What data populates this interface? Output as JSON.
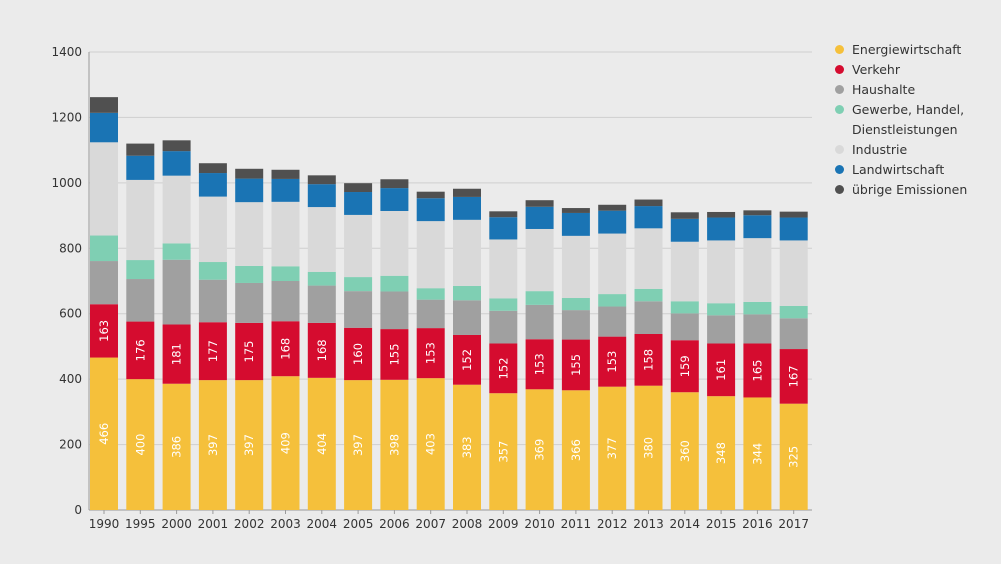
{
  "chart_data": {
    "type": "bar",
    "stacked": true,
    "categories": [
      "1990",
      "1995",
      "2000",
      "2001",
      "2002",
      "2003",
      "2004",
      "2005",
      "2006",
      "2007",
      "2008",
      "2009",
      "2010",
      "2011",
      "2012",
      "2013",
      "2014",
      "2015",
      "2016",
      "2017"
    ],
    "ylim": [
      0,
      1400
    ],
    "yticks": [
      0,
      200,
      400,
      600,
      800,
      1000,
      1200,
      1400
    ],
    "grid": true,
    "legend_position": "right",
    "series": [
      {
        "name": "Energiewirtschaft",
        "color": "#f5c03b",
        "labeled": true,
        "values": [
          466,
          400,
          386,
          397,
          397,
          409,
          404,
          397,
          398,
          403,
          383,
          357,
          369,
          366,
          377,
          380,
          360,
          348,
          344,
          325
        ]
      },
      {
        "name": "Verkehr",
        "color": "#d50c2f",
        "labeled": true,
        "values": [
          163,
          176,
          181,
          177,
          175,
          168,
          168,
          160,
          155,
          153,
          152,
          152,
          153,
          155,
          153,
          158,
          159,
          161,
          165,
          167
        ]
      },
      {
        "name": "Haushalte",
        "color": "#a0a0a0",
        "labeled": false,
        "values": [
          132,
          130,
          198,
          130,
          122,
          123,
          114,
          112,
          115,
          87,
          106,
          100,
          105,
          90,
          92,
          100,
          82,
          86,
          89,
          94
        ]
      },
      {
        "name": "Gewerbe, Handel, Dienstleistungen",
        "color": "#7fcfb3",
        "labeled": false,
        "values": [
          78,
          58,
          50,
          54,
          52,
          45,
          42,
          43,
          48,
          35,
          44,
          38,
          42,
          37,
          38,
          38,
          37,
          37,
          38,
          38
        ]
      },
      {
        "name": "Industrie",
        "color": "#d9d9d9",
        "labeled": false,
        "values": [
          285,
          245,
          207,
          200,
          195,
          197,
          198,
          190,
          198,
          205,
          202,
          180,
          190,
          190,
          185,
          185,
          182,
          192,
          195,
          200
        ]
      },
      {
        "name": "Landwirtschaft",
        "color": "#1a74b4",
        "labeled": false,
        "values": [
          90,
          74,
          75,
          72,
          72,
          70,
          70,
          70,
          70,
          70,
          70,
          68,
          68,
          70,
          70,
          68,
          70,
          70,
          70,
          70
        ]
      },
      {
        "name": "übrige Emissionen",
        "color": "#505050",
        "labeled": false,
        "values": [
          48,
          37,
          33,
          30,
          30,
          28,
          27,
          27,
          27,
          20,
          25,
          18,
          20,
          15,
          18,
          20,
          20,
          17,
          15,
          18
        ]
      }
    ]
  }
}
